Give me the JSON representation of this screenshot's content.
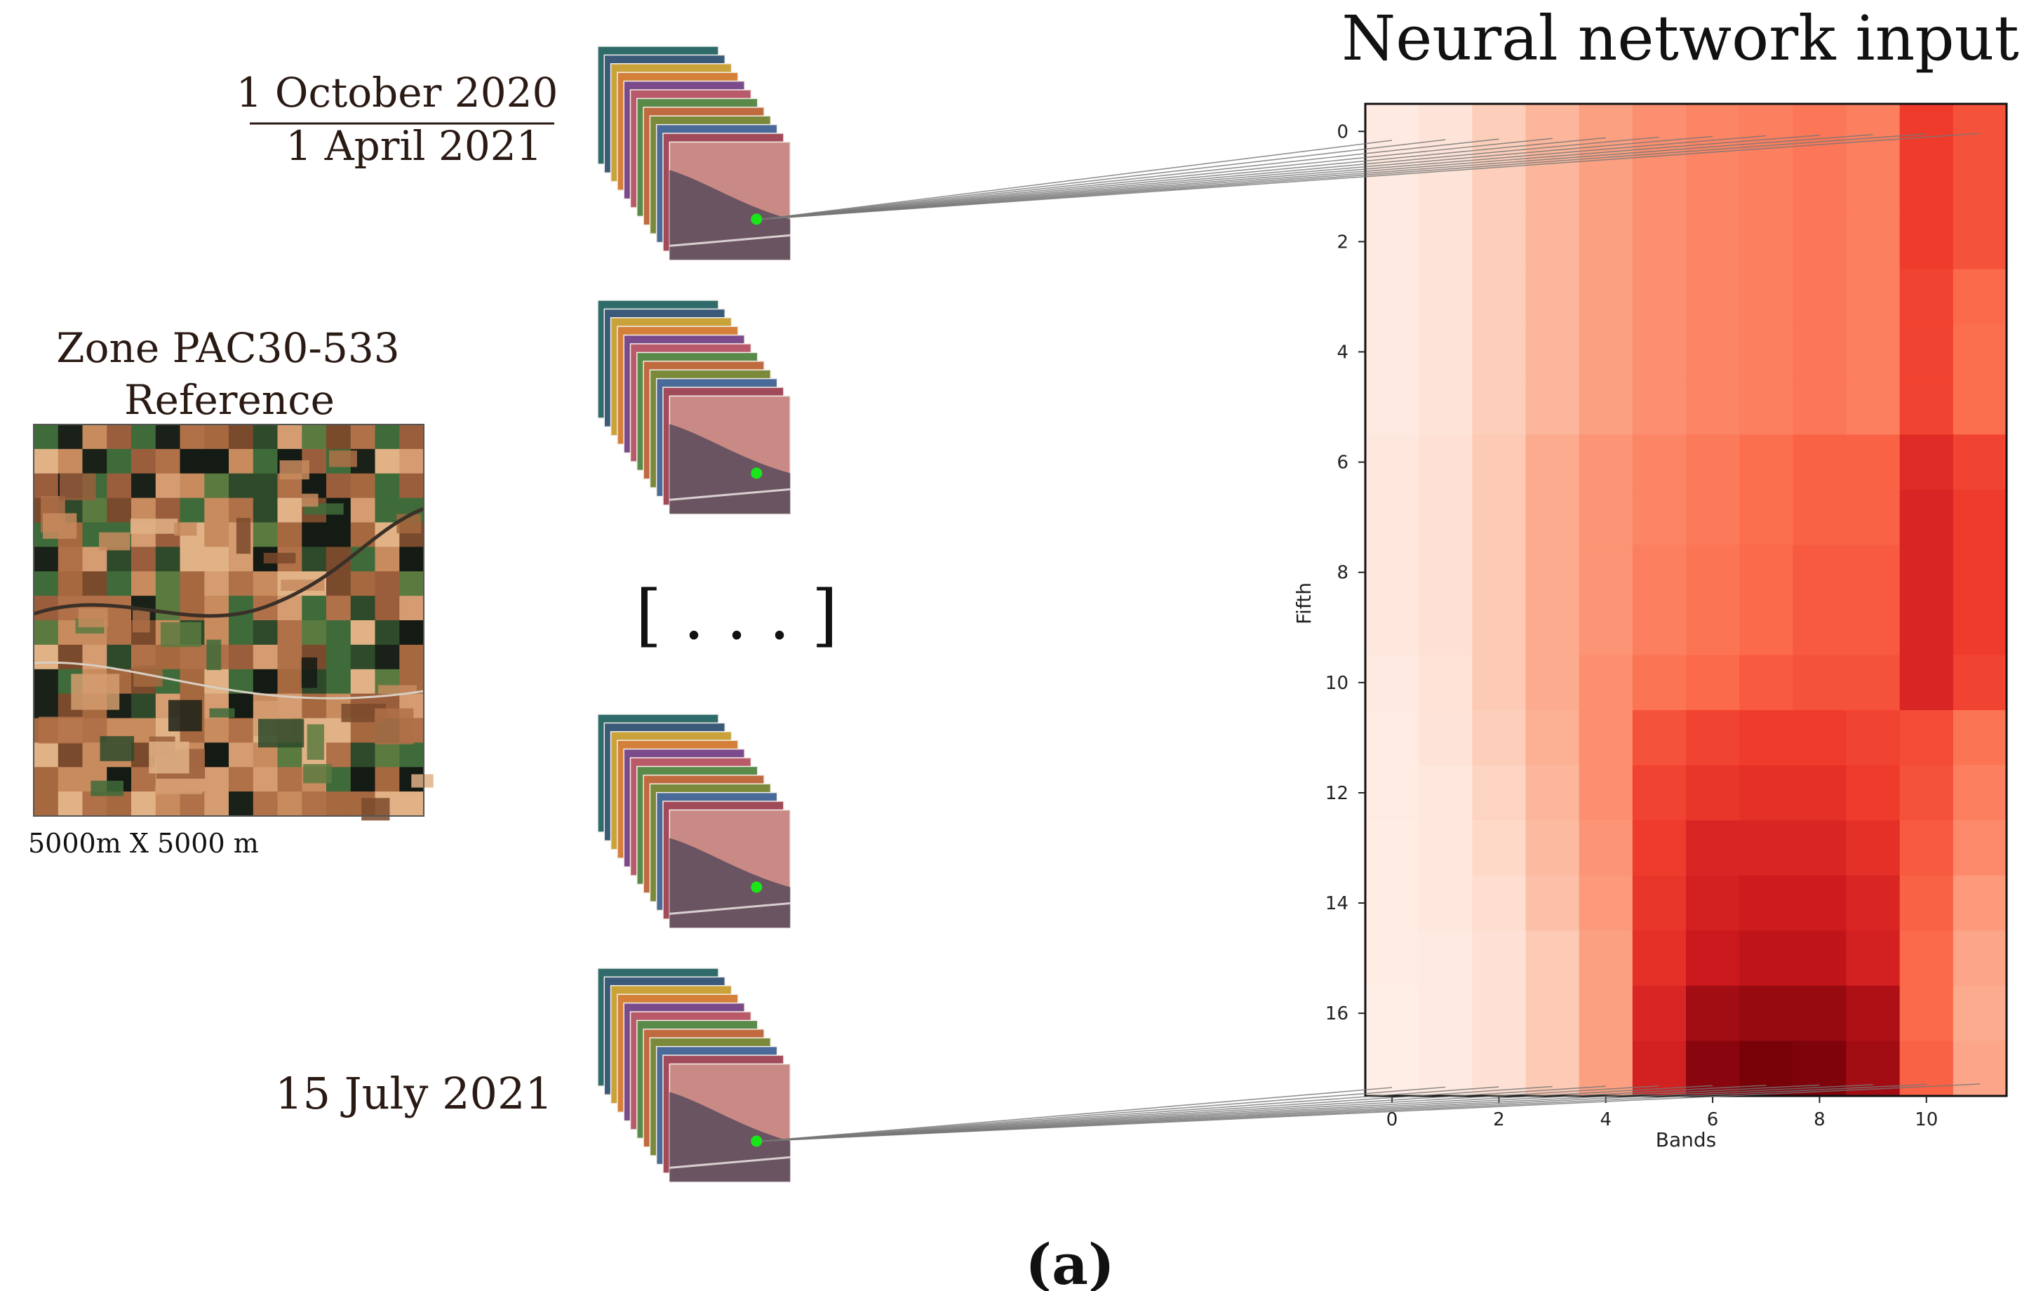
{
  "title": "Neural network input",
  "date_range": {
    "start": "1 October 2020",
    "end": "1 April 2021"
  },
  "final_date": "15 July 2021",
  "zone": {
    "name": "Zone PAC30-533",
    "subtitle": "Reference",
    "extent": "5000m X 5000 m"
  },
  "ellipsis": "[ . . . ]",
  "panel_label": "(a)",
  "heatmap": {
    "xlabel": "Bands",
    "ylabel": "Fifth",
    "x_ticks": [
      "0",
      "2",
      "4",
      "6",
      "8",
      "10"
    ],
    "y_ticks": [
      "0",
      "2",
      "4",
      "6",
      "8",
      "10",
      "12",
      "14",
      "16"
    ],
    "colormap": "Reds",
    "rows": 18,
    "cols": 12
  },
  "chart_data": {
    "type": "heatmap",
    "title": "Neural network input",
    "xlabel": "Bands",
    "ylabel": "Fifth",
    "x": [
      0,
      1,
      2,
      3,
      4,
      5,
      6,
      7,
      8,
      9,
      10,
      11
    ],
    "y": [
      0,
      1,
      2,
      3,
      4,
      5,
      6,
      7,
      8,
      9,
      10,
      11,
      12,
      13,
      14,
      15,
      16,
      17
    ],
    "values": [
      [
        0.08,
        0.12,
        0.22,
        0.32,
        0.4,
        0.46,
        0.5,
        0.52,
        0.55,
        0.52,
        0.72,
        0.66
      ],
      [
        0.08,
        0.12,
        0.22,
        0.32,
        0.4,
        0.46,
        0.5,
        0.52,
        0.55,
        0.52,
        0.72,
        0.66
      ],
      [
        0.08,
        0.12,
        0.22,
        0.32,
        0.4,
        0.46,
        0.5,
        0.52,
        0.55,
        0.52,
        0.72,
        0.66
      ],
      [
        0.08,
        0.12,
        0.22,
        0.32,
        0.4,
        0.46,
        0.5,
        0.52,
        0.55,
        0.52,
        0.7,
        0.6
      ],
      [
        0.08,
        0.12,
        0.22,
        0.32,
        0.4,
        0.46,
        0.5,
        0.52,
        0.55,
        0.52,
        0.7,
        0.58
      ],
      [
        0.08,
        0.12,
        0.22,
        0.32,
        0.4,
        0.46,
        0.5,
        0.52,
        0.55,
        0.52,
        0.7,
        0.58
      ],
      [
        0.09,
        0.14,
        0.24,
        0.36,
        0.44,
        0.5,
        0.54,
        0.58,
        0.62,
        0.62,
        0.78,
        0.7
      ],
      [
        0.09,
        0.14,
        0.24,
        0.36,
        0.44,
        0.5,
        0.54,
        0.58,
        0.62,
        0.62,
        0.8,
        0.72
      ],
      [
        0.09,
        0.14,
        0.24,
        0.36,
        0.44,
        0.52,
        0.56,
        0.6,
        0.64,
        0.64,
        0.8,
        0.72
      ],
      [
        0.09,
        0.14,
        0.24,
        0.36,
        0.44,
        0.52,
        0.56,
        0.6,
        0.64,
        0.64,
        0.8,
        0.72
      ],
      [
        0.08,
        0.13,
        0.24,
        0.36,
        0.46,
        0.56,
        0.6,
        0.64,
        0.66,
        0.66,
        0.8,
        0.7
      ],
      [
        0.07,
        0.12,
        0.22,
        0.34,
        0.46,
        0.66,
        0.7,
        0.72,
        0.72,
        0.7,
        0.68,
        0.56
      ],
      [
        0.07,
        0.1,
        0.2,
        0.32,
        0.46,
        0.7,
        0.74,
        0.76,
        0.76,
        0.72,
        0.66,
        0.52
      ],
      [
        0.06,
        0.1,
        0.18,
        0.3,
        0.44,
        0.72,
        0.8,
        0.8,
        0.8,
        0.76,
        0.64,
        0.48
      ],
      [
        0.06,
        0.09,
        0.16,
        0.28,
        0.42,
        0.74,
        0.82,
        0.84,
        0.84,
        0.8,
        0.62,
        0.42
      ],
      [
        0.06,
        0.08,
        0.14,
        0.24,
        0.4,
        0.76,
        0.85,
        0.87,
        0.87,
        0.82,
        0.6,
        0.38
      ],
      [
        0.05,
        0.08,
        0.14,
        0.24,
        0.4,
        0.8,
        0.92,
        0.94,
        0.94,
        0.9,
        0.6,
        0.36
      ],
      [
        0.05,
        0.08,
        0.14,
        0.24,
        0.4,
        0.82,
        0.96,
        0.99,
        0.98,
        0.92,
        0.62,
        0.38
      ]
    ]
  }
}
